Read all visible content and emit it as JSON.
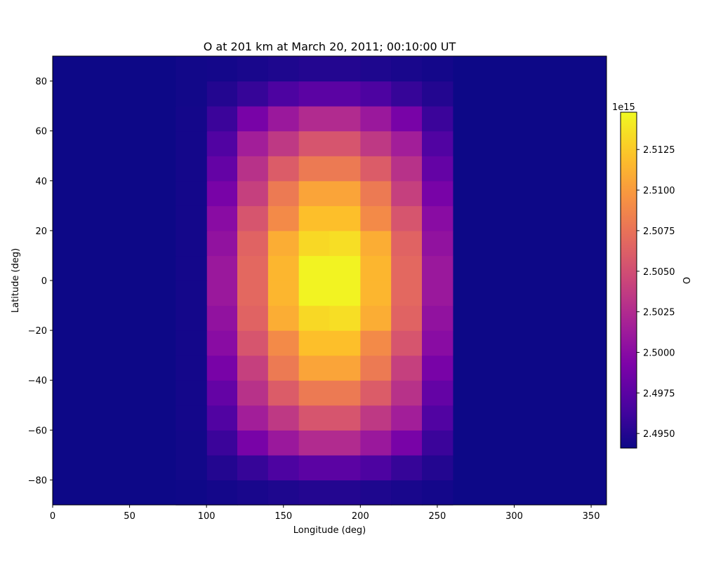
{
  "chart_data": {
    "type": "heatmap",
    "title": "O at  201 km at March 20, 2011; 00:10:00 UT",
    "xlabel": "Longitude (deg)",
    "ylabel": "Latitude (deg)",
    "xlim": [
      0,
      360
    ],
    "ylim": [
      -90,
      90
    ],
    "x_ticks": [
      0,
      50,
      100,
      150,
      200,
      250,
      300,
      350
    ],
    "y_ticks": [
      -80,
      -60,
      -40,
      -20,
      0,
      20,
      40,
      60,
      80
    ],
    "x_cell_width_deg": 20,
    "y_cell_height_deg": 10,
    "colormap": "plasma",
    "colorbar": {
      "label": "O",
      "offset_text": "1e15",
      "vmin": 2.4941,
      "vmax": 2.5148,
      "ticks": [
        2.495,
        2.4975,
        2.5,
        2.5025,
        2.505,
        2.5075,
        2.51,
        2.5125
      ],
      "tick_labels": [
        "2.4950",
        "2.4975",
        "2.5000",
        "2.5025",
        "2.5050",
        "2.5075",
        "2.5100",
        "2.5125"
      ]
    },
    "background_value": 2.4941,
    "grid": false,
    "cells": [
      {
        "lon_start": 100,
        "lat_start": -90,
        "value": 2.4944
      },
      {
        "lon_start": 100,
        "lat_start": -80,
        "value": 2.495
      },
      {
        "lon_start": 100,
        "lat_start": -70,
        "value": 2.496
      },
      {
        "lon_start": 100,
        "lat_start": -60,
        "value": 2.497
      },
      {
        "lon_start": 100,
        "lat_start": -50,
        "value": 2.498
      },
      {
        "lon_start": 100,
        "lat_start": -40,
        "value": 2.499
      },
      {
        "lon_start": 100,
        "lat_start": -30,
        "value": 2.5
      },
      {
        "lon_start": 100,
        "lat_start": -20,
        "value": 2.5005
      },
      {
        "lon_start": 100,
        "lat_start": -10,
        "value": 2.501
      },
      {
        "lon_start": 100,
        "lat_start": 0,
        "value": 2.501
      },
      {
        "lon_start": 100,
        "lat_start": 10,
        "value": 2.5005
      },
      {
        "lon_start": 100,
        "lat_start": 20,
        "value": 2.5
      },
      {
        "lon_start": 100,
        "lat_start": 30,
        "value": 2.499
      },
      {
        "lon_start": 100,
        "lat_start": 40,
        "value": 2.498
      },
      {
        "lon_start": 100,
        "lat_start": 50,
        "value": 2.497
      },
      {
        "lon_start": 100,
        "lat_start": 60,
        "value": 2.496
      },
      {
        "lon_start": 100,
        "lat_start": 70,
        "value": 2.495
      },
      {
        "lon_start": 100,
        "lat_start": 80,
        "value": 2.4944
      },
      {
        "lon_start": 120,
        "lat_start": -90,
        "value": 2.4946
      },
      {
        "lon_start": 120,
        "lat_start": -80,
        "value": 2.4958
      },
      {
        "lon_start": 120,
        "lat_start": -70,
        "value": 2.499
      },
      {
        "lon_start": 120,
        "lat_start": -60,
        "value": 2.5015
      },
      {
        "lon_start": 120,
        "lat_start": -50,
        "value": 2.503
      },
      {
        "lon_start": 120,
        "lat_start": -40,
        "value": 2.504
      },
      {
        "lon_start": 120,
        "lat_start": -30,
        "value": 2.5055
      },
      {
        "lon_start": 120,
        "lat_start": -20,
        "value": 2.5065
      },
      {
        "lon_start": 120,
        "lat_start": -10,
        "value": 2.5068
      },
      {
        "lon_start": 120,
        "lat_start": 0,
        "value": 2.5068
      },
      {
        "lon_start": 120,
        "lat_start": 10,
        "value": 2.5065
      },
      {
        "lon_start": 120,
        "lat_start": 20,
        "value": 2.5055
      },
      {
        "lon_start": 120,
        "lat_start": 30,
        "value": 2.504
      },
      {
        "lon_start": 120,
        "lat_start": 40,
        "value": 2.503
      },
      {
        "lon_start": 120,
        "lat_start": 50,
        "value": 2.5015
      },
      {
        "lon_start": 120,
        "lat_start": 60,
        "value": 2.499
      },
      {
        "lon_start": 120,
        "lat_start": 70,
        "value": 2.4958
      },
      {
        "lon_start": 120,
        "lat_start": 80,
        "value": 2.4946
      },
      {
        "lon_start": 140,
        "lat_start": -90,
        "value": 2.4948
      },
      {
        "lon_start": 140,
        "lat_start": -80,
        "value": 2.4968
      },
      {
        "lon_start": 140,
        "lat_start": -70,
        "value": 2.501
      },
      {
        "lon_start": 140,
        "lat_start": -60,
        "value": 2.5035
      },
      {
        "lon_start": 140,
        "lat_start": -50,
        "value": 2.506
      },
      {
        "lon_start": 140,
        "lat_start": -40,
        "value": 2.508
      },
      {
        "lon_start": 140,
        "lat_start": -30,
        "value": 2.509
      },
      {
        "lon_start": 140,
        "lat_start": -20,
        "value": 2.511
      },
      {
        "lon_start": 140,
        "lat_start": -10,
        "value": 2.5115
      },
      {
        "lon_start": 140,
        "lat_start": 0,
        "value": 2.5115
      },
      {
        "lon_start": 140,
        "lat_start": 10,
        "value": 2.511
      },
      {
        "lon_start": 140,
        "lat_start": 20,
        "value": 2.509
      },
      {
        "lon_start": 140,
        "lat_start": 30,
        "value": 2.508
      },
      {
        "lon_start": 140,
        "lat_start": 40,
        "value": 2.506
      },
      {
        "lon_start": 140,
        "lat_start": 50,
        "value": 2.5035
      },
      {
        "lon_start": 140,
        "lat_start": 60,
        "value": 2.501
      },
      {
        "lon_start": 140,
        "lat_start": 70,
        "value": 2.4968
      },
      {
        "lon_start": 140,
        "lat_start": 80,
        "value": 2.4948
      },
      {
        "lon_start": 160,
        "lat_start": -90,
        "value": 2.495
      },
      {
        "lon_start": 160,
        "lat_start": -80,
        "value": 2.4975
      },
      {
        "lon_start": 160,
        "lat_start": -70,
        "value": 2.5025
      },
      {
        "lon_start": 160,
        "lat_start": -60,
        "value": 2.5055
      },
      {
        "lon_start": 160,
        "lat_start": -50,
        "value": 2.508
      },
      {
        "lon_start": 160,
        "lat_start": -40,
        "value": 2.5105
      },
      {
        "lon_start": 160,
        "lat_start": -30,
        "value": 2.512
      },
      {
        "lon_start": 160,
        "lat_start": -20,
        "value": 2.5132
      },
      {
        "lon_start": 160,
        "lat_start": -10,
        "value": 2.5145
      },
      {
        "lon_start": 160,
        "lat_start": 0,
        "value": 2.5145
      },
      {
        "lon_start": 160,
        "lat_start": 10,
        "value": 2.5132
      },
      {
        "lon_start": 160,
        "lat_start": 20,
        "value": 2.512
      },
      {
        "lon_start": 160,
        "lat_start": 30,
        "value": 2.5105
      },
      {
        "lon_start": 160,
        "lat_start": 40,
        "value": 2.508
      },
      {
        "lon_start": 160,
        "lat_start": 50,
        "value": 2.5055
      },
      {
        "lon_start": 160,
        "lat_start": 60,
        "value": 2.5025
      },
      {
        "lon_start": 160,
        "lat_start": 70,
        "value": 2.4975
      },
      {
        "lon_start": 160,
        "lat_start": 80,
        "value": 2.495
      },
      {
        "lon_start": 180,
        "lat_start": -90,
        "value": 2.495
      },
      {
        "lon_start": 180,
        "lat_start": -80,
        "value": 2.4975
      },
      {
        "lon_start": 180,
        "lat_start": -70,
        "value": 2.5025
      },
      {
        "lon_start": 180,
        "lat_start": -60,
        "value": 2.5055
      },
      {
        "lon_start": 180,
        "lat_start": -50,
        "value": 2.508
      },
      {
        "lon_start": 180,
        "lat_start": -40,
        "value": 2.5105
      },
      {
        "lon_start": 180,
        "lat_start": -30,
        "value": 2.512
      },
      {
        "lon_start": 180,
        "lat_start": -20,
        "value": 2.5135
      },
      {
        "lon_start": 180,
        "lat_start": -10,
        "value": 2.5145
      },
      {
        "lon_start": 180,
        "lat_start": 0,
        "value": 2.5145
      },
      {
        "lon_start": 180,
        "lat_start": 10,
        "value": 2.5135
      },
      {
        "lon_start": 180,
        "lat_start": 20,
        "value": 2.512
      },
      {
        "lon_start": 180,
        "lat_start": 30,
        "value": 2.5105
      },
      {
        "lon_start": 180,
        "lat_start": 40,
        "value": 2.508
      },
      {
        "lon_start": 180,
        "lat_start": 50,
        "value": 2.5055
      },
      {
        "lon_start": 180,
        "lat_start": 60,
        "value": 2.5025
      },
      {
        "lon_start": 180,
        "lat_start": 70,
        "value": 2.4975
      },
      {
        "lon_start": 180,
        "lat_start": 80,
        "value": 2.495
      },
      {
        "lon_start": 200,
        "lat_start": -90,
        "value": 2.4948
      },
      {
        "lon_start": 200,
        "lat_start": -80,
        "value": 2.4968
      },
      {
        "lon_start": 200,
        "lat_start": -70,
        "value": 2.501
      },
      {
        "lon_start": 200,
        "lat_start": -60,
        "value": 2.5035
      },
      {
        "lon_start": 200,
        "lat_start": -50,
        "value": 2.506
      },
      {
        "lon_start": 200,
        "lat_start": -40,
        "value": 2.508
      },
      {
        "lon_start": 200,
        "lat_start": -30,
        "value": 2.509
      },
      {
        "lon_start": 200,
        "lat_start": -20,
        "value": 2.511
      },
      {
        "lon_start": 200,
        "lat_start": -10,
        "value": 2.5115
      },
      {
        "lon_start": 200,
        "lat_start": 0,
        "value": 2.5115
      },
      {
        "lon_start": 200,
        "lat_start": 10,
        "value": 2.511
      },
      {
        "lon_start": 200,
        "lat_start": 20,
        "value": 2.509
      },
      {
        "lon_start": 200,
        "lat_start": 30,
        "value": 2.508
      },
      {
        "lon_start": 200,
        "lat_start": 40,
        "value": 2.506
      },
      {
        "lon_start": 200,
        "lat_start": 50,
        "value": 2.5035
      },
      {
        "lon_start": 200,
        "lat_start": 60,
        "value": 2.501
      },
      {
        "lon_start": 200,
        "lat_start": 70,
        "value": 2.4968
      },
      {
        "lon_start": 200,
        "lat_start": 80,
        "value": 2.4948
      },
      {
        "lon_start": 220,
        "lat_start": -90,
        "value": 2.4946
      },
      {
        "lon_start": 220,
        "lat_start": -80,
        "value": 2.4958
      },
      {
        "lon_start": 220,
        "lat_start": -70,
        "value": 2.499
      },
      {
        "lon_start": 220,
        "lat_start": -60,
        "value": 2.5015
      },
      {
        "lon_start": 220,
        "lat_start": -50,
        "value": 2.503
      },
      {
        "lon_start": 220,
        "lat_start": -40,
        "value": 2.504
      },
      {
        "lon_start": 220,
        "lat_start": -30,
        "value": 2.5055
      },
      {
        "lon_start": 220,
        "lat_start": -20,
        "value": 2.5065
      },
      {
        "lon_start": 220,
        "lat_start": -10,
        "value": 2.5068
      },
      {
        "lon_start": 220,
        "lat_start": 0,
        "value": 2.5068
      },
      {
        "lon_start": 220,
        "lat_start": 10,
        "value": 2.5065
      },
      {
        "lon_start": 220,
        "lat_start": 20,
        "value": 2.5055
      },
      {
        "lon_start": 220,
        "lat_start": 30,
        "value": 2.504
      },
      {
        "lon_start": 220,
        "lat_start": 40,
        "value": 2.503
      },
      {
        "lon_start": 220,
        "lat_start": 50,
        "value": 2.5015
      },
      {
        "lon_start": 220,
        "lat_start": 60,
        "value": 2.499
      },
      {
        "lon_start": 220,
        "lat_start": 70,
        "value": 2.4958
      },
      {
        "lon_start": 220,
        "lat_start": 80,
        "value": 2.4946
      },
      {
        "lon_start": 240,
        "lat_start": -90,
        "value": 2.4944
      },
      {
        "lon_start": 240,
        "lat_start": -80,
        "value": 2.495
      },
      {
        "lon_start": 240,
        "lat_start": -70,
        "value": 2.496
      },
      {
        "lon_start": 240,
        "lat_start": -60,
        "value": 2.497
      },
      {
        "lon_start": 240,
        "lat_start": -50,
        "value": 2.498
      },
      {
        "lon_start": 240,
        "lat_start": -40,
        "value": 2.499
      },
      {
        "lon_start": 240,
        "lat_start": -30,
        "value": 2.5
      },
      {
        "lon_start": 240,
        "lat_start": -20,
        "value": 2.5005
      },
      {
        "lon_start": 240,
        "lat_start": -10,
        "value": 2.501
      },
      {
        "lon_start": 240,
        "lat_start": 0,
        "value": 2.501
      },
      {
        "lon_start": 240,
        "lat_start": 10,
        "value": 2.5005
      },
      {
        "lon_start": 240,
        "lat_start": 20,
        "value": 2.5
      },
      {
        "lon_start": 240,
        "lat_start": 30,
        "value": 2.499
      },
      {
        "lon_start": 240,
        "lat_start": 40,
        "value": 2.498
      },
      {
        "lon_start": 240,
        "lat_start": 50,
        "value": 2.497
      },
      {
        "lon_start": 240,
        "lat_start": 60,
        "value": 2.496
      },
      {
        "lon_start": 240,
        "lat_start": 70,
        "value": 2.495
      },
      {
        "lon_start": 240,
        "lat_start": 80,
        "value": 2.4944
      },
      {
        "lon_start": 80,
        "lat_start": -90,
        "value": 2.4942
      },
      {
        "lon_start": 80,
        "lat_start": -80,
        "value": 2.4943
      },
      {
        "lon_start": 80,
        "lat_start": -70,
        "value": 2.4943
      },
      {
        "lon_start": 80,
        "lat_start": -60,
        "value": 2.4944
      },
      {
        "lon_start": 80,
        "lat_start": -50,
        "value": 2.4944
      },
      {
        "lon_start": 80,
        "lat_start": -40,
        "value": 2.4944
      },
      {
        "lon_start": 80,
        "lat_start": -30,
        "value": 2.4944
      },
      {
        "lon_start": 80,
        "lat_start": -20,
        "value": 2.4944
      },
      {
        "lon_start": 80,
        "lat_start": -10,
        "value": 2.4944
      },
      {
        "lon_start": 80,
        "lat_start": 0,
        "value": 2.4944
      },
      {
        "lon_start": 80,
        "lat_start": 10,
        "value": 2.4944
      },
      {
        "lon_start": 80,
        "lat_start": 20,
        "value": 2.4944
      },
      {
        "lon_start": 80,
        "lat_start": 30,
        "value": 2.4944
      },
      {
        "lon_start": 80,
        "lat_start": 40,
        "value": 2.4944
      },
      {
        "lon_start": 80,
        "lat_start": 50,
        "value": 2.4944
      },
      {
        "lon_start": 80,
        "lat_start": 60,
        "value": 2.4944
      },
      {
        "lon_start": 80,
        "lat_start": 70,
        "value": 2.4943
      },
      {
        "lon_start": 80,
        "lat_start": 80,
        "value": 2.4943
      }
    ]
  }
}
